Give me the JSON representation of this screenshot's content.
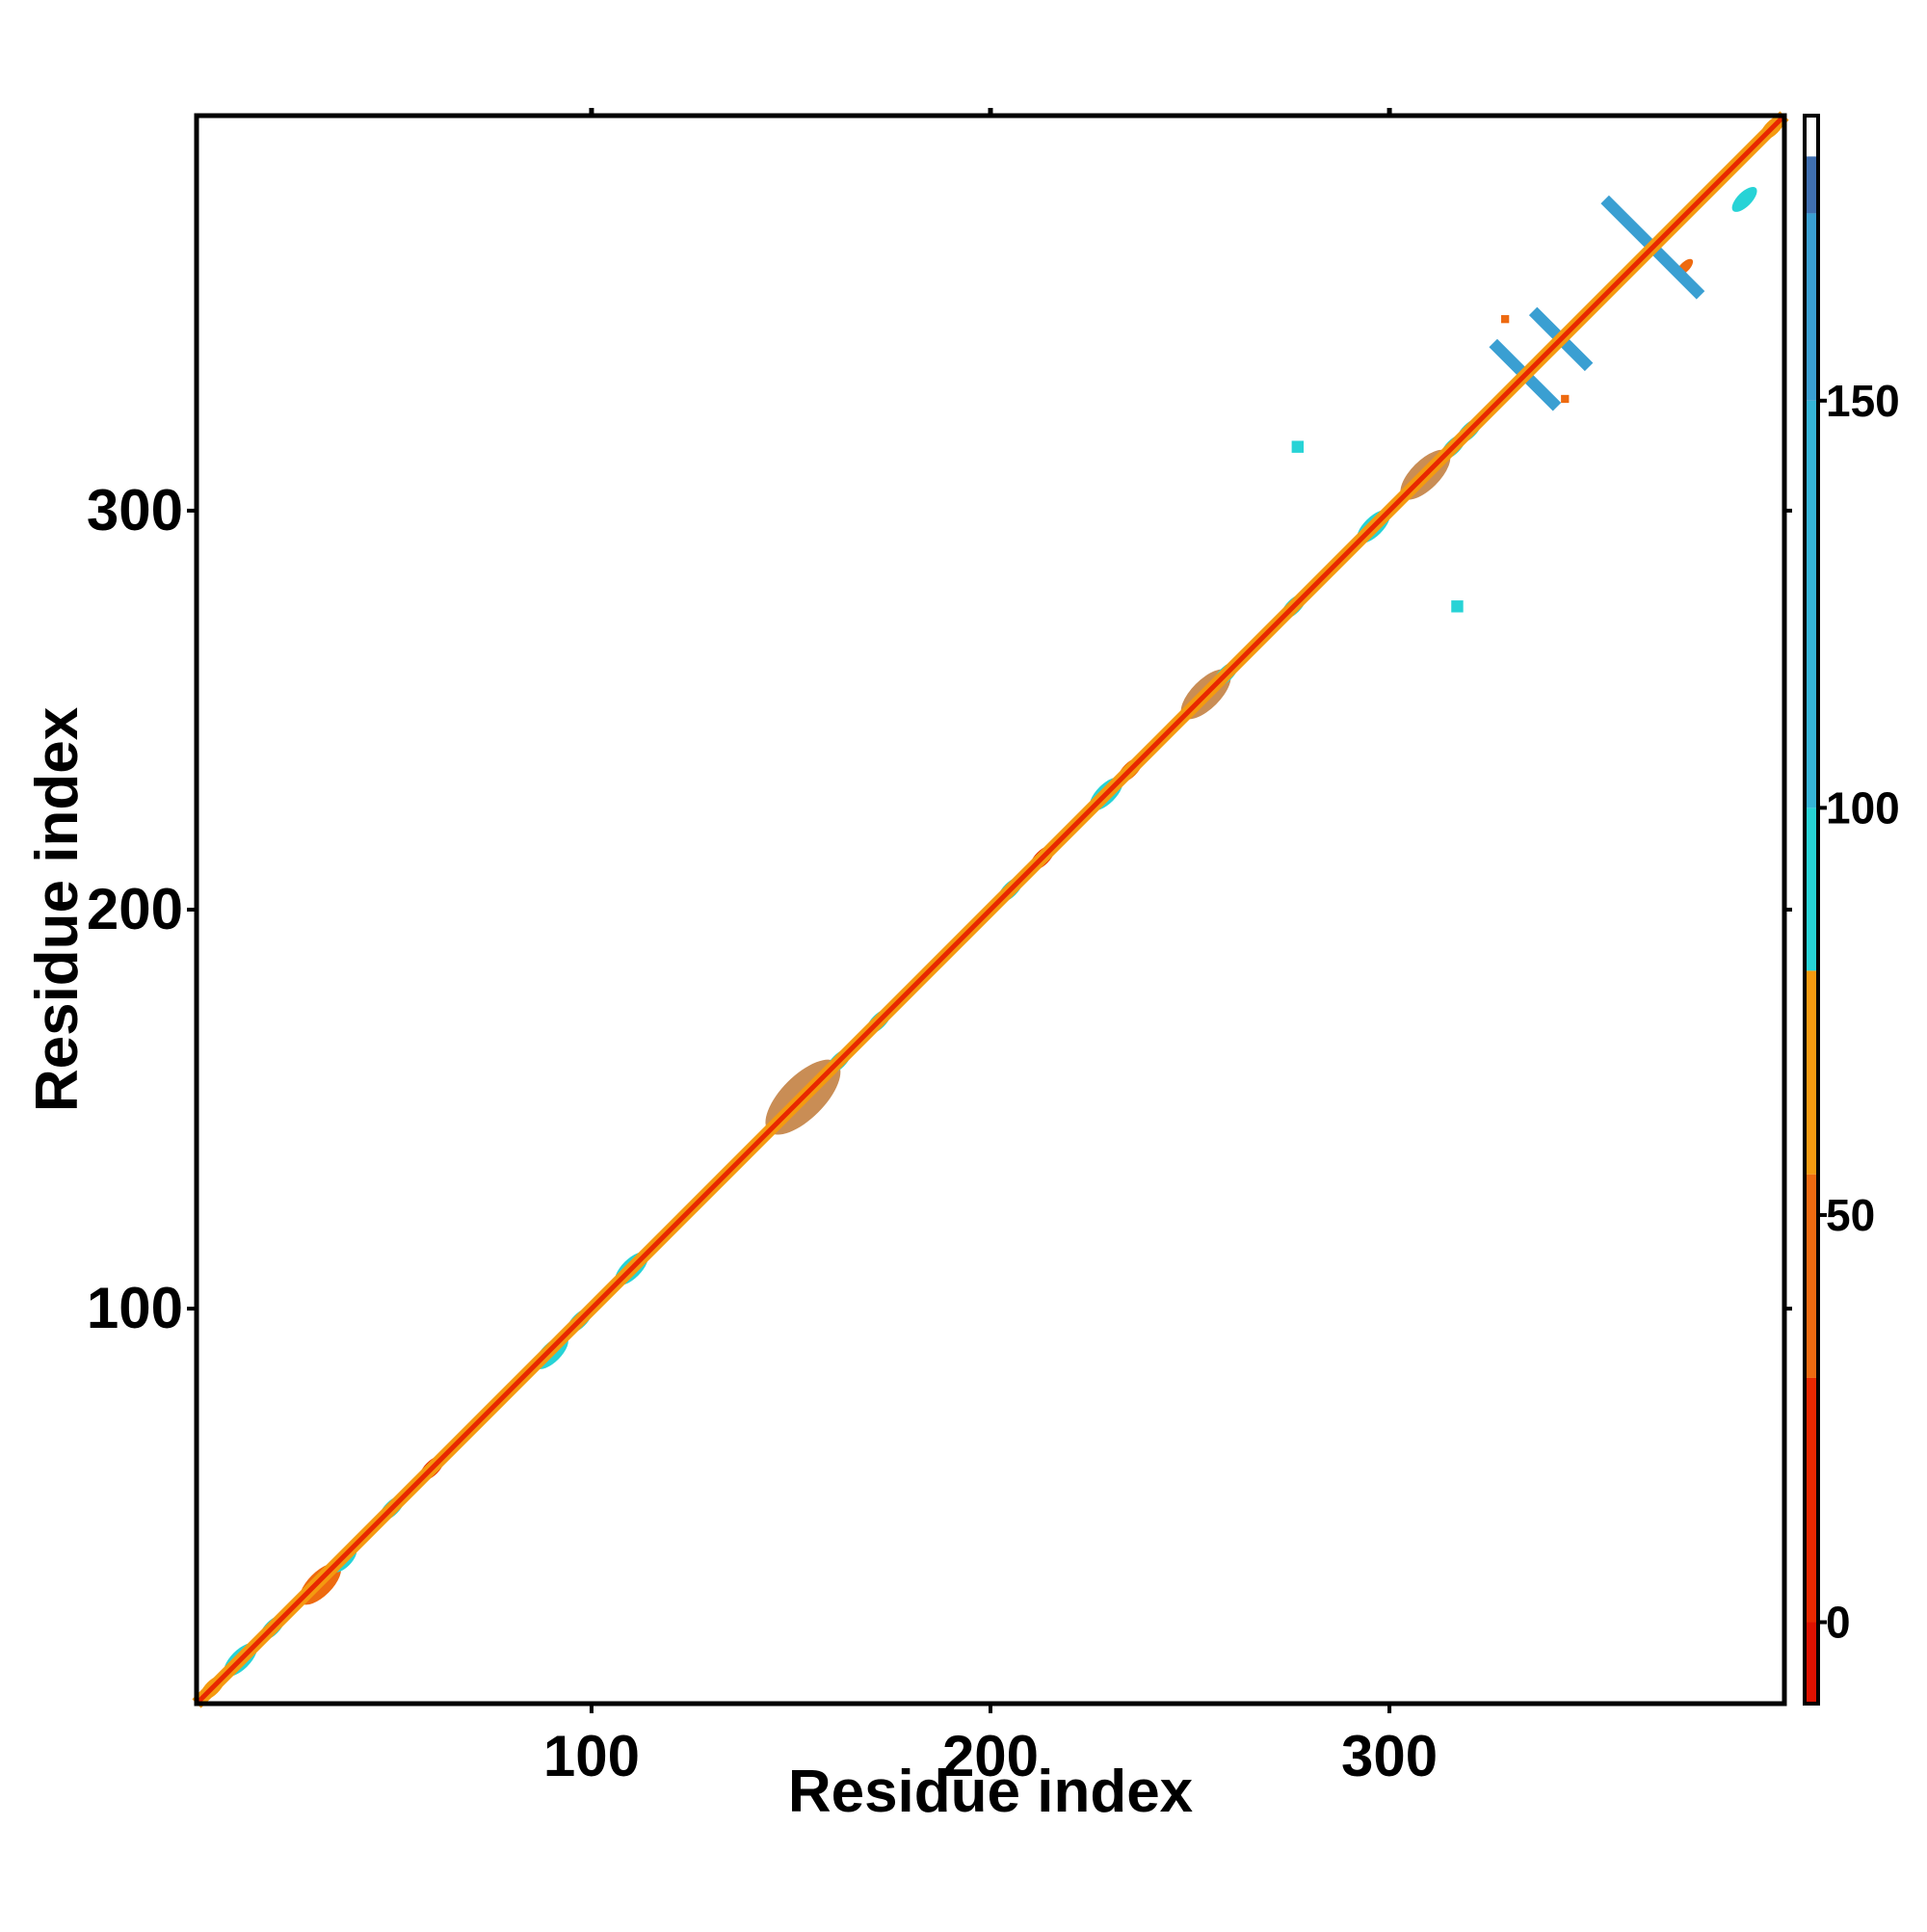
{
  "chart_data": {
    "type": "heatmap",
    "title": "",
    "xlabel": "Residue index",
    "ylabel": "Residue index",
    "xlim": [
      1,
      399
    ],
    "ylim": [
      1,
      399
    ],
    "xticks": [
      100,
      200,
      300
    ],
    "yticks": [
      100,
      200,
      300
    ],
    "grid": false,
    "colorbar": {
      "range": [
        -10,
        185
      ],
      "ticks": [
        0,
        50,
        100,
        150
      ],
      "bands": [
        {
          "from": -10,
          "to": 0,
          "color": "#dd1100"
        },
        {
          "from": 0,
          "to": 30,
          "color": "#e82800"
        },
        {
          "from": 30,
          "to": 55,
          "color": "#ee6a10"
        },
        {
          "from": 55,
          "to": 80,
          "color": "#f49a10"
        },
        {
          "from": 80,
          "to": 100,
          "color": "#27d3d6"
        },
        {
          "from": 100,
          "to": 150,
          "color": "#35b4d8"
        },
        {
          "from": 150,
          "to": 173,
          "color": "#3a9fd2"
        },
        {
          "from": 173,
          "to": 180,
          "color": "#3f6fb0"
        },
        {
          "from": 180,
          "to": 185,
          "color": "#ffffff"
        }
      ]
    },
    "diagonal_band": {
      "from": 1,
      "to": 399
    },
    "features": [
      {
        "kind": "blob",
        "center": [
          5,
          5
        ],
        "size": 3,
        "color": "#f49a10"
      },
      {
        "kind": "blob",
        "center": [
          12,
          12
        ],
        "size": 4,
        "color": "#27d3d6"
      },
      {
        "kind": "blob",
        "center": [
          20,
          20
        ],
        "size": 3,
        "color": "#27d3d6"
      },
      {
        "kind": "blob",
        "center": [
          32,
          31
        ],
        "size": 5,
        "color": "#ee6a10"
      },
      {
        "kind": "blob",
        "center": [
          38,
          37
        ],
        "size": 3,
        "color": "#27d3d6"
      },
      {
        "kind": "blob",
        "center": [
          50,
          50
        ],
        "size": 3,
        "color": "#27d3d6"
      },
      {
        "kind": "blob",
        "center": [
          60,
          60
        ],
        "size": 3,
        "color": "#e82800"
      },
      {
        "kind": "blob",
        "center": [
          90,
          89
        ],
        "size": 4,
        "color": "#27d3d6"
      },
      {
        "kind": "blob",
        "center": [
          97,
          97
        ],
        "size": 3,
        "color": "#27d3d6"
      },
      {
        "kind": "blob",
        "center": [
          110,
          110
        ],
        "size": 4,
        "color": "#27d3d6"
      },
      {
        "kind": "blob",
        "center": [
          153,
          153
        ],
        "size": 9,
        "color": "#c98d55"
      },
      {
        "kind": "blob",
        "center": [
          162,
          162
        ],
        "size": 3,
        "color": "#27d3d6"
      },
      {
        "kind": "blob",
        "center": [
          172,
          172
        ],
        "size": 3,
        "color": "#27d3d6"
      },
      {
        "kind": "blob",
        "center": [
          205,
          205
        ],
        "size": 3,
        "color": "#27d3d6"
      },
      {
        "kind": "blob",
        "center": [
          213,
          213
        ],
        "size": 3,
        "color": "#e82800"
      },
      {
        "kind": "blob",
        "center": [
          229,
          229
        ],
        "size": 4,
        "color": "#27d3d6"
      },
      {
        "kind": "blob",
        "center": [
          235,
          235
        ],
        "size": 3,
        "color": "#ee6a10"
      },
      {
        "kind": "blob",
        "center": [
          254,
          254
        ],
        "size": 6,
        "color": "#c98d55"
      },
      {
        "kind": "blob",
        "center": [
          259,
          259
        ],
        "size": 3,
        "color": "#27d3d6"
      },
      {
        "kind": "blob",
        "center": [
          276,
          276
        ],
        "size": 3,
        "color": "#27d3d6"
      },
      {
        "kind": "blob",
        "center": [
          296,
          296
        ],
        "size": 4,
        "color": "#27d3d6"
      },
      {
        "kind": "blob",
        "center": [
          309,
          309
        ],
        "size": 6,
        "color": "#c98d55"
      },
      {
        "kind": "blob",
        "center": [
          316,
          316
        ],
        "size": 3,
        "color": "#27d3d6"
      },
      {
        "kind": "blob",
        "center": [
          320,
          320
        ],
        "size": 3,
        "color": "#27d3d6"
      },
      {
        "kind": "blob",
        "center": [
          396,
          396
        ],
        "size": 3,
        "color": "#f49a10"
      },
      {
        "kind": "blob",
        "center": [
          374,
          361
        ],
        "size": 2,
        "color": "#ee6a10"
      },
      {
        "kind": "blob",
        "center": [
          389,
          378
        ],
        "size": 3,
        "color": "#27d3d6"
      },
      {
        "kind": "dot",
        "center": [
          277,
          316
        ],
        "size": 1.5,
        "color": "#27d3d6"
      },
      {
        "kind": "dot",
        "center": [
          317,
          276
        ],
        "size": 1.5,
        "color": "#27d3d6"
      },
      {
        "kind": "dot",
        "center": [
          329,
          348
        ],
        "size": 1,
        "color": "#ee6a10"
      },
      {
        "kind": "dot",
        "center": [
          344,
          328
        ],
        "size": 1,
        "color": "#ee6a10"
      },
      {
        "kind": "cross",
        "center": [
          366,
          366
        ],
        "half": 12,
        "color": "#3a9fd2"
      },
      {
        "kind": "cross",
        "center": [
          343,
          343
        ],
        "half": 7,
        "color": "#3a9fd2"
      },
      {
        "kind": "cross",
        "center": [
          334,
          334
        ],
        "half": 8,
        "color": "#3a9fd2"
      }
    ]
  }
}
